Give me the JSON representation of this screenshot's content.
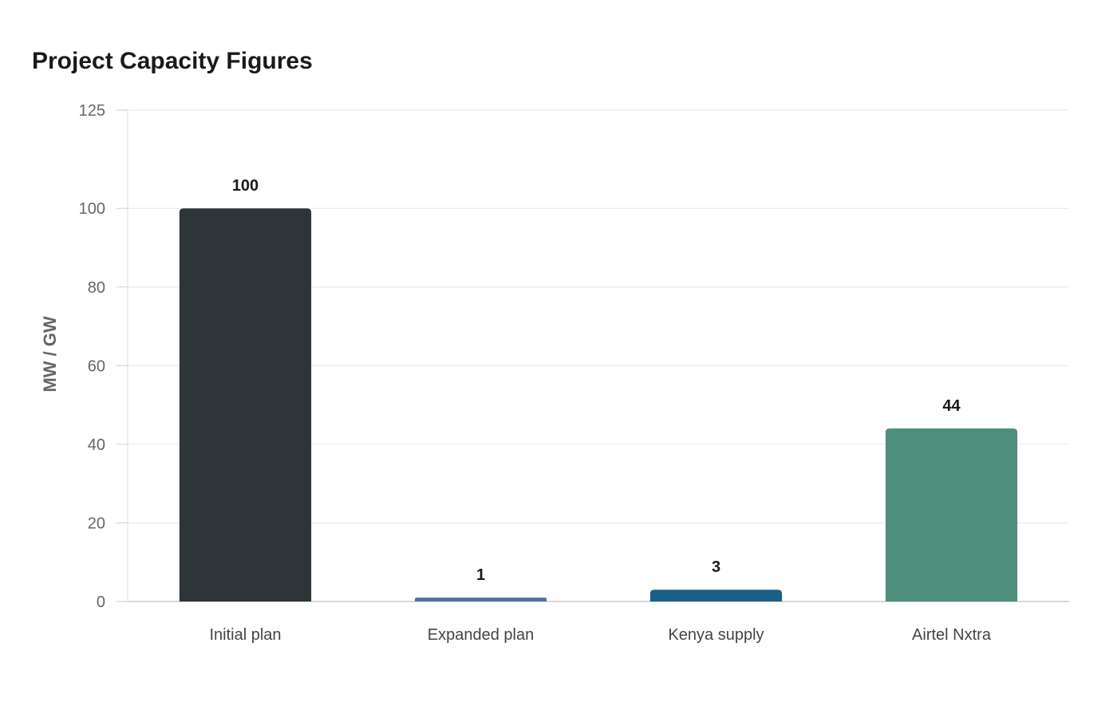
{
  "chart_data": {
    "type": "bar",
    "title": "Project Capacity Figures",
    "xlabel": "",
    "ylabel": "MW / GW",
    "categories": [
      "Initial plan",
      "Expanded plan",
      "Kenya supply",
      "Airtel Nxtra"
    ],
    "values": [
      100,
      1,
      3,
      44
    ],
    "value_labels": [
      "100",
      "1",
      "3",
      "44"
    ],
    "colors": [
      "#2e3538",
      "#50739a",
      "#1a5f86",
      "#4e8e7c"
    ],
    "ylim": [
      0,
      125
    ],
    "yticks": [
      0,
      20,
      40,
      60,
      80,
      100,
      125
    ],
    "ytick_labels": [
      "0",
      "20",
      "40",
      "60",
      "80",
      "100",
      "125"
    ],
    "grid": true,
    "legend": "none"
  }
}
